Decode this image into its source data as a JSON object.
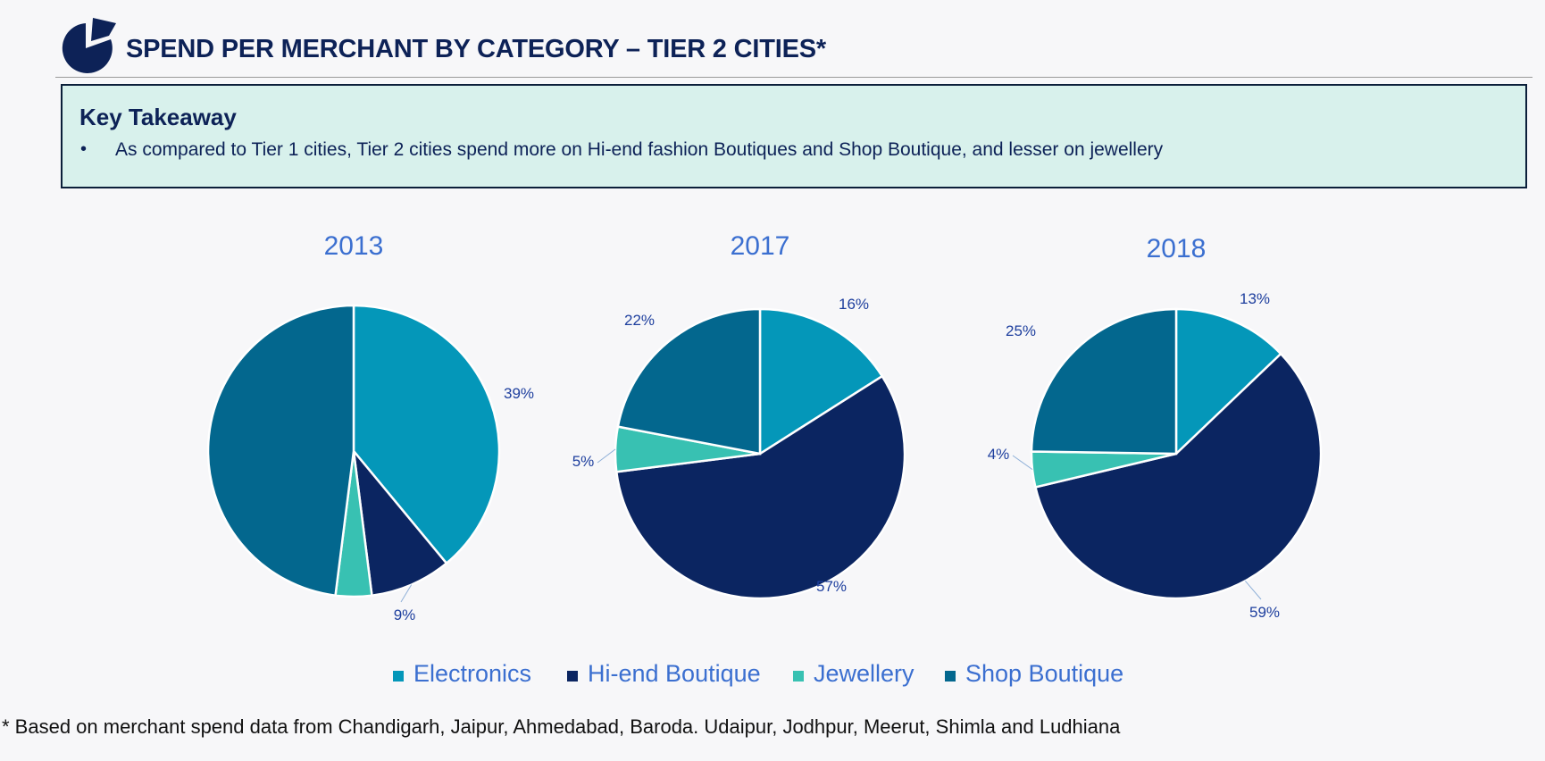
{
  "header": {
    "title": "SPEND PER MERCHANT BY CATEGORY – TIER 2 CITIES*",
    "logo_icon": "pie-chart-logo-icon"
  },
  "takeaway": {
    "heading": "Key Takeaway",
    "bullet_marker": "•",
    "text": "As compared to Tier 1 cities, Tier 2 cities spend more on Hi-end fashion Boutiques and Shop Boutique, and lesser on jewellery"
  },
  "colors": {
    "Electronics": "#0497b9",
    "Hi-end Boutique": "#0b2561",
    "Jewellery": "#38c1b2",
    "Shop Boutique": "#03678e",
    "title_text": "#3b6fd0",
    "label_text": "#1e3f9e"
  },
  "legend": [
    "Electronics",
    "Hi-end Boutique",
    "Jewellery",
    "Shop Boutique"
  ],
  "chart_data": [
    {
      "type": "pie",
      "title": "2013",
      "categories": [
        "Electronics",
        "Hi-end Boutique",
        "Jewellery",
        "Shop Boutique"
      ],
      "values": [
        39,
        9,
        4,
        48
      ],
      "data_labels": [
        "39%",
        "9%",
        "",
        ""
      ]
    },
    {
      "type": "pie",
      "title": "2017",
      "categories": [
        "Electronics",
        "Hi-end Boutique",
        "Jewellery",
        "Shop Boutique"
      ],
      "values": [
        16,
        57,
        5,
        22
      ],
      "data_labels": [
        "16%",
        "57%",
        "5%",
        "22%"
      ]
    },
    {
      "type": "pie",
      "title": "2018",
      "categories": [
        "Electronics",
        "Hi-end Boutique",
        "Jewellery",
        "Shop Boutique"
      ],
      "values": [
        13,
        59,
        4,
        25
      ],
      "data_labels": [
        "13%",
        "59%",
        "4%",
        "25%"
      ]
    }
  ],
  "footnote": "* Based on merchant spend data from Chandigarh, Jaipur, Ahmedabad, Baroda. Udaipur, Jodhpur, Meerut, Shimla and Ludhiana"
}
